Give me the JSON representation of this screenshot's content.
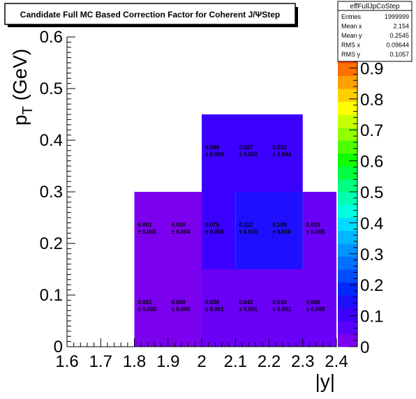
{
  "title": "Candidate Full MC Based Correction Factor for Coherent J/ΨStep",
  "stats": {
    "name": "effFullJpCoStep",
    "rows": [
      {
        "label": "Entries",
        "value": "1999999"
      },
      {
        "label": "Mean x",
        "value": "2.154"
      },
      {
        "label": "Mean y",
        "value": "0.2545"
      },
      {
        "label": "RMS x",
        "value": "0.09644"
      },
      {
        "label": "RMS y",
        "value": "0.1057"
      }
    ]
  },
  "chart_data": {
    "type": "heatmap",
    "title": "Candidate Full MC Based Correction Factor for Coherent J/ΨStep",
    "xlabel": "|y|",
    "ylabel": "p_T (GeV)",
    "xlim": [
      1.6,
      2.4
    ],
    "ylim": [
      0,
      0.6
    ],
    "zlim": [
      0,
      1
    ],
    "x_ticks": [
      "1.6",
      "1.7",
      "1.8",
      "1.9",
      "2",
      "2.1",
      "2.2",
      "2.3",
      "2.4"
    ],
    "y_ticks": [
      "0",
      "0.1",
      "0.2",
      "0.3",
      "0.4",
      "0.5",
      "0.6"
    ],
    "z_ticks": [
      "0",
      "0.1",
      "0.2",
      "0.3",
      "0.4",
      "0.5",
      "0.6",
      "0.7",
      "0.8",
      "0.9"
    ],
    "palette": [
      "#7a00ee",
      "#5a00ff",
      "#3c00ff",
      "#1e10ff",
      "#0028ff",
      "#004cff",
      "#0070ff",
      "#0094ff",
      "#00b8ff",
      "#00dcff",
      "#00ffe0",
      "#00ffb0",
      "#00ff80",
      "#00ff40",
      "#10ff00",
      "#50ff00",
      "#90ff00",
      "#c8ff00",
      "#ffff00",
      "#ffd000",
      "#ffa000",
      "#ff7000",
      "#ff4000",
      "#ff1000"
    ],
    "cells": [
      {
        "x": [
          1.8,
          2.0
        ],
        "y": [
          0.0,
          0.3
        ],
        "z": 0.001,
        "value": "0.001",
        "error": "± 0.000",
        "label_x": 1.8,
        "label_y": 0.08
      },
      {
        "x": [
          1.8,
          2.0
        ],
        "y": [
          0.0,
          0.3
        ],
        "z": 0.001,
        "value": "0.009",
        "error": "± 0.000",
        "label_x": 1.9,
        "label_y": 0.08,
        "no_fill": true
      },
      {
        "x": [
          1.8,
          2.0
        ],
        "y": [
          0.0,
          0.3
        ],
        "z": 0.001,
        "value": "0.001",
        "error": "± 0.001",
        "label_x": 1.8,
        "label_y": 0.23,
        "no_fill": true
      },
      {
        "x": [
          1.8,
          2.0
        ],
        "y": [
          0.0,
          0.3
        ],
        "z": 0.001,
        "value": "0.020",
        "error": "± 0.004",
        "label_x": 1.9,
        "label_y": 0.23,
        "no_fill": true
      },
      {
        "x": [
          2.0,
          2.4
        ],
        "y": [
          0.0,
          0.15
        ],
        "z": 0.036,
        "value": "0.036",
        "error": "± 0.001",
        "label_x": 2.0,
        "label_y": 0.08
      },
      {
        "x": [
          2.0,
          2.4
        ],
        "y": [
          0.0,
          0.15
        ],
        "z": 0.036,
        "value": "0.042",
        "error": "± 0.001",
        "label_x": 2.1,
        "label_y": 0.08,
        "no_fill": true
      },
      {
        "x": [
          2.0,
          2.4
        ],
        "y": [
          0.0,
          0.15
        ],
        "z": 0.036,
        "value": "0.030",
        "error": "± 0.001",
        "label_x": 2.2,
        "label_y": 0.08,
        "no_fill": true
      },
      {
        "x": [
          2.0,
          2.4
        ],
        "y": [
          0.0,
          0.15
        ],
        "z": 0.036,
        "value": "0.006",
        "error": "± 0.000",
        "label_x": 2.3,
        "label_y": 0.08,
        "no_fill": true
      },
      {
        "x": [
          2.0,
          2.1
        ],
        "y": [
          0.15,
          0.3
        ],
        "z": 0.075,
        "value": "0.075",
        "error": "± 0.008",
        "label_x": 2.0,
        "label_y": 0.23
      },
      {
        "x": [
          2.1,
          2.3
        ],
        "y": [
          0.15,
          0.3
        ],
        "z": 0.11,
        "value": "0.112",
        "error": "± 0.010",
        "label_x": 2.1,
        "label_y": 0.23
      },
      {
        "x": [
          2.1,
          2.3
        ],
        "y": [
          0.15,
          0.3
        ],
        "z": 0.11,
        "value": "0.109",
        "error": "± 0.010",
        "label_x": 2.2,
        "label_y": 0.23,
        "no_fill": true
      },
      {
        "x": [
          2.3,
          2.4
        ],
        "y": [
          0.15,
          0.3
        ],
        "z": 0.025,
        "value": "0.025",
        "error": "± 0.005",
        "label_x": 2.3,
        "label_y": 0.23
      },
      {
        "x": [
          2.0,
          2.3
        ],
        "y": [
          0.3,
          0.45
        ],
        "z": 0.088,
        "value": "0.088",
        "error": "± 0.049",
        "label_x": 2.0,
        "label_y": 0.38
      },
      {
        "x": [
          2.0,
          2.3
        ],
        "y": [
          0.3,
          0.45
        ],
        "z": 0.088,
        "value": "0.087",
        "error": "± 0.042",
        "label_x": 2.1,
        "label_y": 0.38,
        "no_fill": true
      },
      {
        "x": [
          2.0,
          2.3
        ],
        "y": [
          0.3,
          0.45
        ],
        "z": 0.088,
        "value": "0.093",
        "error": "± 0.044",
        "label_x": 2.2,
        "label_y": 0.38,
        "no_fill": true
      }
    ]
  }
}
